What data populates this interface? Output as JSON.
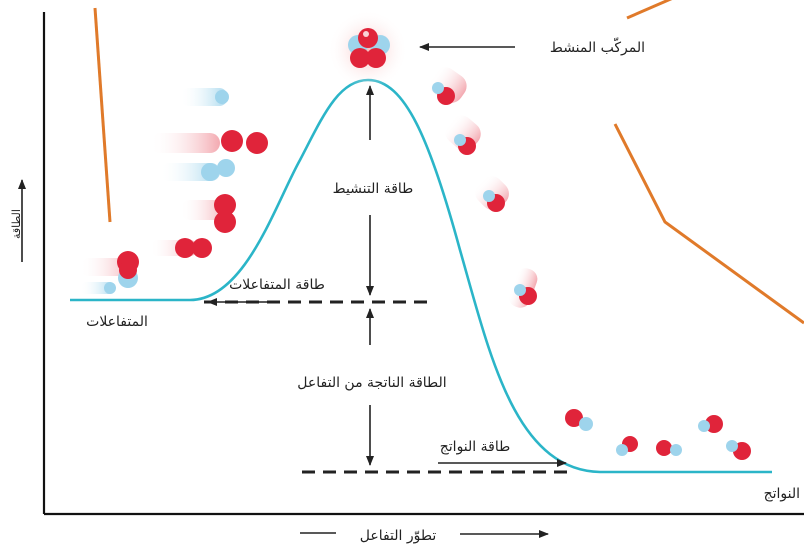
{
  "labels": {
    "activated_complex": "المركّب المنشط",
    "activation_energy": "طاقة التنشيط",
    "reactants_energy": "طاقة المتفاعلات",
    "reactants": "المتفاعلات",
    "energy_released": "الطاقة الناتجة من التفاعل",
    "products_energy": "طاقة النواتج",
    "products": "النواتج",
    "x_axis": "تطوّر التفاعل",
    "y_axis": "الطاقة"
  },
  "colors": {
    "curve": "#2bb5c8",
    "callout_line": "#e07a2a",
    "arrow": "#222222",
    "molecule_red": "#e0243a",
    "molecule_blue": "#8fd0ea"
  }
}
